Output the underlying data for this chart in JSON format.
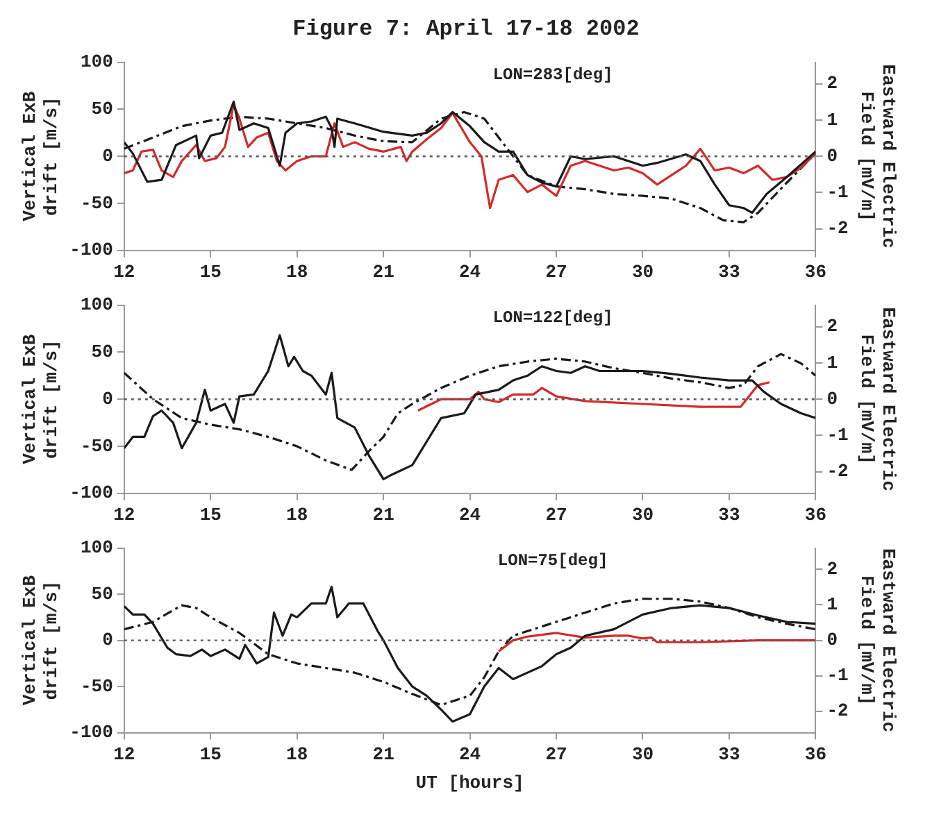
{
  "chart_data": [
    {
      "type": "line",
      "title": "Figure 7: April 17-18 2002",
      "ylabel": "Vertical ExB\ndrift [m/s]",
      "y2label": "Eastward Electric\nField [mV/m]",
      "annotations": [
        "LON=283[deg]"
      ],
      "xlim": [
        12,
        36
      ],
      "xticks": [
        12,
        15,
        18,
        21,
        24,
        27,
        30,
        33,
        36
      ],
      "ylim": [
        -100,
        100
      ],
      "yticks": [
        -100,
        -50,
        0,
        50,
        100
      ],
      "y2lim": [
        -2.6,
        2.6
      ],
      "y2ticks": [
        -2,
        -1,
        0,
        1,
        2
      ],
      "grid": false,
      "legend": false,
      "marker": "none",
      "ref_lines": [
        {
          "axis": "y",
          "value": 0,
          "line_style": "dotted",
          "color": "#555555"
        }
      ],
      "series": [
        {
          "color": "#1a1a1a",
          "line_style": "solid",
          "x": [
            12,
            12.3,
            12.8,
            13.3,
            13.8,
            14.5,
            14.6,
            15,
            15.4,
            15.8,
            16,
            16.5,
            17,
            17.4,
            17.6,
            18,
            18.5,
            19,
            19.2,
            19.3,
            19.4,
            20,
            21,
            22,
            22.5,
            23,
            23.4,
            24,
            24.5,
            25,
            25.5,
            26,
            26.5,
            27,
            27.5,
            28,
            29,
            30,
            30.5,
            31.5,
            32,
            32.5,
            33,
            33.5,
            33.8,
            34.3,
            35,
            36
          ],
          "values": [
            15,
            3,
            -27,
            -25,
            12,
            22,
            -2,
            22,
            25,
            58,
            28,
            35,
            30,
            -10,
            25,
            35,
            37,
            42,
            30,
            10,
            40,
            35,
            26,
            22,
            25,
            35,
            47,
            32,
            15,
            5,
            5,
            -20,
            -28,
            -32,
            0,
            -3,
            0,
            -10,
            -7,
            2,
            -5,
            -30,
            -52,
            -55,
            -60,
            -40,
            -22,
            5
          ]
        },
        {
          "color": "#d42a2a",
          "line_style": "solid",
          "x": [
            12,
            12.3,
            12.6,
            13,
            13.3,
            13.7,
            14,
            14.5,
            14.8,
            15.2,
            15.5,
            15.8,
            16,
            16.3,
            16.6,
            17,
            17.3,
            17.6,
            18,
            18.5,
            19,
            19.3,
            19.6,
            20,
            20.5,
            21,
            21.6,
            21.8,
            22,
            22.5,
            23,
            23.4,
            24,
            24.4,
            24.7,
            25,
            25.5,
            26,
            26.5,
            27,
            27.5,
            28,
            28.5,
            29,
            29.5,
            30,
            30.5,
            31,
            31.5,
            32,
            32.5,
            33,
            33.5,
            34,
            34.5,
            35,
            35.5,
            36
          ],
          "values": [
            -18,
            -15,
            5,
            7,
            -15,
            -22,
            -5,
            12,
            -5,
            -2,
            10,
            55,
            40,
            10,
            20,
            25,
            -5,
            -15,
            -5,
            0,
            0,
            35,
            10,
            15,
            8,
            5,
            10,
            -5,
            5,
            18,
            30,
            46,
            15,
            0,
            -55,
            -25,
            -20,
            -38,
            -30,
            -42,
            -10,
            -5,
            -10,
            -15,
            -12,
            -18,
            -30,
            -20,
            -10,
            8,
            -15,
            -12,
            -18,
            -10,
            -25,
            -22,
            -12,
            3
          ]
        },
        {
          "color": "#1a1a1a",
          "line_style": "dashed",
          "x": [
            12,
            13,
            14,
            15,
            16,
            17,
            18,
            19,
            20,
            21,
            22,
            23,
            23.8,
            24.5,
            25,
            25.5,
            26,
            27,
            28,
            29,
            30,
            31,
            32,
            32.8,
            33.5,
            34,
            35,
            36
          ],
          "values": [
            8,
            20,
            32,
            38,
            42,
            40,
            35,
            30,
            22,
            16,
            15,
            40,
            47,
            40,
            20,
            0,
            -20,
            -32,
            -35,
            -40,
            -42,
            -45,
            -55,
            -68,
            -70,
            -60,
            -28,
            3
          ]
        }
      ]
    },
    {
      "type": "line",
      "ylabel": "Vertical ExB\ndrift [m/s]",
      "y2label": "Eastward Electric\nField [mV/m]",
      "annotations": [
        "LON=122[deg]"
      ],
      "xlim": [
        12,
        36
      ],
      "xticks": [
        12,
        15,
        18,
        21,
        24,
        27,
        30,
        33,
        36
      ],
      "ylim": [
        -100,
        100
      ],
      "yticks": [
        -100,
        -50,
        0,
        50,
        100
      ],
      "y2lim": [
        -2.6,
        2.6
      ],
      "y2ticks": [
        -2,
        -1,
        0,
        1,
        2
      ],
      "grid": false,
      "legend": false,
      "marker": "none",
      "ref_lines": [
        {
          "axis": "y",
          "value": 0,
          "line_style": "dotted",
          "color": "#555555"
        }
      ],
      "series": [
        {
          "color": "#1a1a1a",
          "line_style": "solid",
          "x": [
            12,
            12.3,
            12.7,
            13,
            13.3,
            13.7,
            14,
            14.5,
            14.8,
            15,
            15.5,
            15.8,
            16,
            16.5,
            17,
            17.4,
            17.7,
            17.9,
            18.2,
            18.5,
            19,
            19.2,
            19.4,
            20,
            20.5,
            21,
            21.3,
            22,
            22.5,
            23,
            23.8,
            24.2,
            25,
            25.5,
            26,
            26.5,
            27,
            27.5,
            28,
            28.5,
            29.5,
            30,
            31,
            32,
            33,
            33.8,
            34.2,
            34.8,
            35.5,
            36
          ],
          "values": [
            -52,
            -40,
            -40,
            -18,
            -12,
            -25,
            -52,
            -25,
            10,
            -12,
            -5,
            -25,
            3,
            5,
            30,
            68,
            35,
            45,
            30,
            25,
            5,
            28,
            -20,
            -30,
            -60,
            -85,
            -80,
            -70,
            -45,
            -20,
            -15,
            5,
            10,
            20,
            25,
            35,
            30,
            28,
            35,
            30,
            30,
            30,
            27,
            23,
            20,
            20,
            8,
            -5,
            -15,
            -20
          ]
        },
        {
          "color": "#d42a2a",
          "line_style": "solid",
          "x": [
            22.2,
            23,
            24,
            24.3,
            24.5,
            25,
            25.5,
            26.2,
            26.5,
            27,
            28,
            30,
            32,
            33.4,
            34,
            34.4
          ],
          "values": [
            -12,
            0,
            0,
            8,
            0,
            -3,
            5,
            5,
            12,
            3,
            -2,
            -5,
            -8,
            -8,
            15,
            18
          ]
        },
        {
          "color": "#1a1a1a",
          "line_style": "dashed",
          "x": [
            12,
            13,
            14,
            15,
            16,
            17,
            18,
            19,
            19.9,
            20.5,
            21,
            21.5,
            22,
            23,
            24,
            25,
            26,
            27,
            28,
            29,
            30,
            31,
            32,
            33,
            33.5,
            34,
            34.8,
            35.5,
            36
          ],
          "values": [
            28,
            0,
            -20,
            -27,
            -32,
            -40,
            -50,
            -65,
            -75,
            -55,
            -40,
            -15,
            -5,
            12,
            25,
            35,
            40,
            43,
            40,
            33,
            28,
            22,
            18,
            12,
            15,
            35,
            48,
            38,
            25
          ]
        }
      ]
    },
    {
      "type": "line",
      "xlabel": "UT [hours]",
      "ylabel": "Vertical ExB\ndrift [m/s]",
      "y2label": "Eastward Electric\nField [mV/m]",
      "annotations": [
        "LON=75[deg]"
      ],
      "xlim": [
        12,
        36
      ],
      "xticks": [
        12,
        15,
        18,
        21,
        24,
        27,
        30,
        33,
        36
      ],
      "ylim": [
        -100,
        100
      ],
      "yticks": [
        -100,
        -50,
        0,
        50,
        100
      ],
      "y2lim": [
        -2.6,
        2.6
      ],
      "y2ticks": [
        -2,
        -1,
        0,
        1,
        2
      ],
      "grid": false,
      "legend": false,
      "marker": "none",
      "ref_lines": [
        {
          "axis": "y",
          "value": 0,
          "line_style": "dotted",
          "color": "#555555"
        }
      ],
      "series": [
        {
          "color": "#1a1a1a",
          "line_style": "solid",
          "x": [
            12,
            12.3,
            12.7,
            13,
            13.5,
            13.8,
            14.3,
            14.7,
            15,
            15.5,
            16,
            16.2,
            16.6,
            17,
            17.2,
            17.5,
            17.8,
            18,
            18.5,
            19,
            19.2,
            19.4,
            19.8,
            20.3,
            20.8,
            21,
            21.5,
            22,
            22.5,
            23,
            23.4,
            24,
            24.5,
            25,
            25.5,
            26,
            26.5,
            27,
            27.5,
            28,
            29,
            30,
            31,
            32,
            33,
            34,
            35,
            36
          ],
          "values": [
            37,
            28,
            28,
            18,
            -8,
            -15,
            -17,
            -10,
            -17,
            -10,
            -20,
            -5,
            -25,
            -18,
            30,
            5,
            28,
            25,
            40,
            40,
            58,
            25,
            40,
            40,
            10,
            0,
            -30,
            -50,
            -60,
            -75,
            -88,
            -80,
            -50,
            -30,
            -42,
            -35,
            -28,
            -15,
            -8,
            5,
            12,
            28,
            35,
            38,
            35,
            27,
            20,
            18
          ]
        },
        {
          "color": "#d42a2a",
          "line_style": "solid",
          "x": [
            25,
            25.5,
            26,
            27,
            28,
            29,
            29.5,
            30,
            30.3,
            30.5,
            32,
            34,
            36
          ],
          "values": [
            -12,
            0,
            4,
            8,
            3,
            5,
            5,
            2,
            3,
            -2,
            -2,
            0,
            0
          ]
        },
        {
          "color": "#1a1a1a",
          "line_style": "dashed",
          "x": [
            12,
            13,
            14,
            14.5,
            15,
            16,
            17,
            18,
            19,
            20,
            21,
            22,
            23,
            24,
            24.5,
            25,
            25.5,
            26,
            27,
            28,
            29,
            30,
            31,
            32,
            33,
            34,
            35,
            36
          ],
          "values": [
            12,
            20,
            38,
            35,
            25,
            8,
            -15,
            -25,
            -30,
            -35,
            -45,
            -58,
            -70,
            -60,
            -40,
            -12,
            5,
            10,
            20,
            30,
            40,
            45,
            45,
            42,
            35,
            25,
            18,
            12
          ]
        }
      ]
    }
  ]
}
